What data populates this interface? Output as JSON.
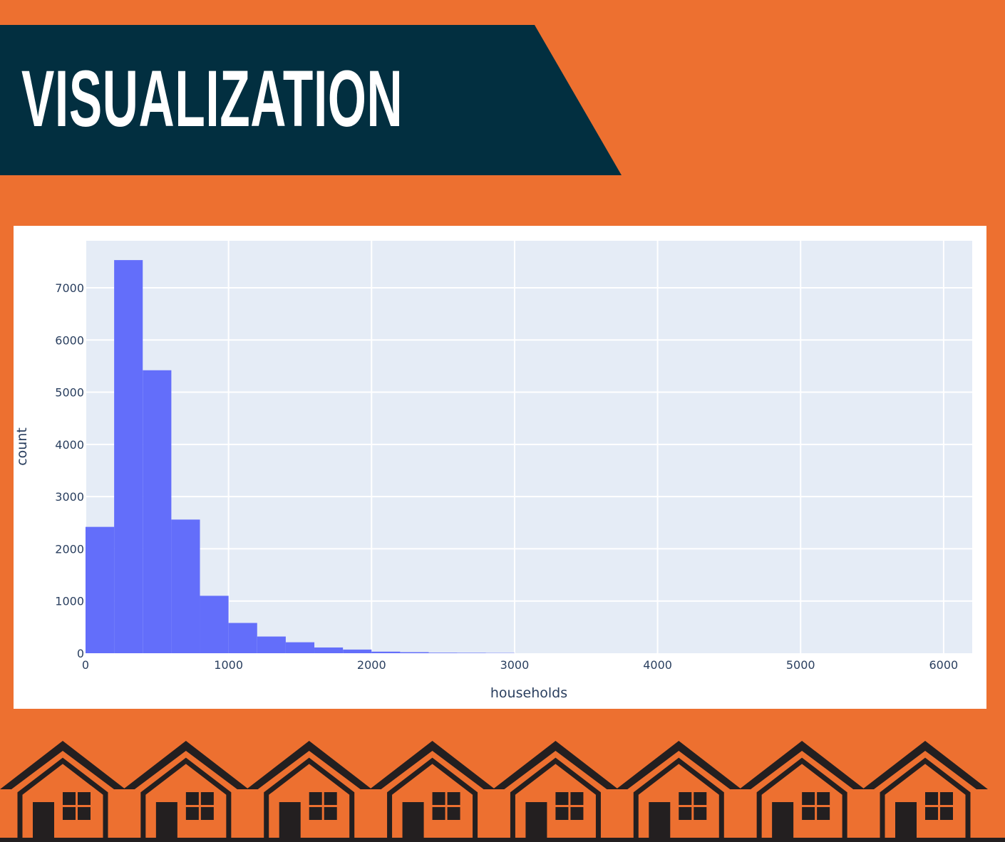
{
  "banner": {
    "title": "VISUALIZATION"
  },
  "colors": {
    "background": "#ed7030",
    "banner": "#022f40",
    "plot_background": "#e5ecf6",
    "bar": "#636efa",
    "house_outline": "#231f20",
    "house_fill": "#ed7030"
  },
  "decoration": {
    "house_icon": "house-icon",
    "house_count": 8
  },
  "chart_data": {
    "type": "bar",
    "xlabel": "households",
    "ylabel": "count",
    "xlim": [
      0,
      6200
    ],
    "ylim": [
      0,
      7900
    ],
    "x_ticks": [
      0,
      1000,
      2000,
      3000,
      4000,
      5000,
      6000
    ],
    "y_ticks": [
      0,
      1000,
      2000,
      3000,
      4000,
      5000,
      6000,
      7000
    ],
    "bin_width": 200,
    "bins": [
      {
        "x0": 0,
        "x1": 200,
        "count": 2420
      },
      {
        "x0": 200,
        "x1": 400,
        "count": 7530
      },
      {
        "x0": 400,
        "x1": 600,
        "count": 5420
      },
      {
        "x0": 600,
        "x1": 800,
        "count": 2560
      },
      {
        "x0": 800,
        "x1": 1000,
        "count": 1100
      },
      {
        "x0": 1000,
        "x1": 1200,
        "count": 580
      },
      {
        "x0": 1200,
        "x1": 1400,
        "count": 320
      },
      {
        "x0": 1400,
        "x1": 1600,
        "count": 210
      },
      {
        "x0": 1600,
        "x1": 1800,
        "count": 110
      },
      {
        "x0": 1800,
        "x1": 2000,
        "count": 70
      },
      {
        "x0": 2000,
        "x1": 2200,
        "count": 30
      },
      {
        "x0": 2200,
        "x1": 2400,
        "count": 20
      },
      {
        "x0": 2400,
        "x1": 2600,
        "count": 10
      },
      {
        "x0": 2600,
        "x1": 2800,
        "count": 8
      },
      {
        "x0": 2800,
        "x1": 3000,
        "count": 5
      }
    ],
    "grid": true
  }
}
